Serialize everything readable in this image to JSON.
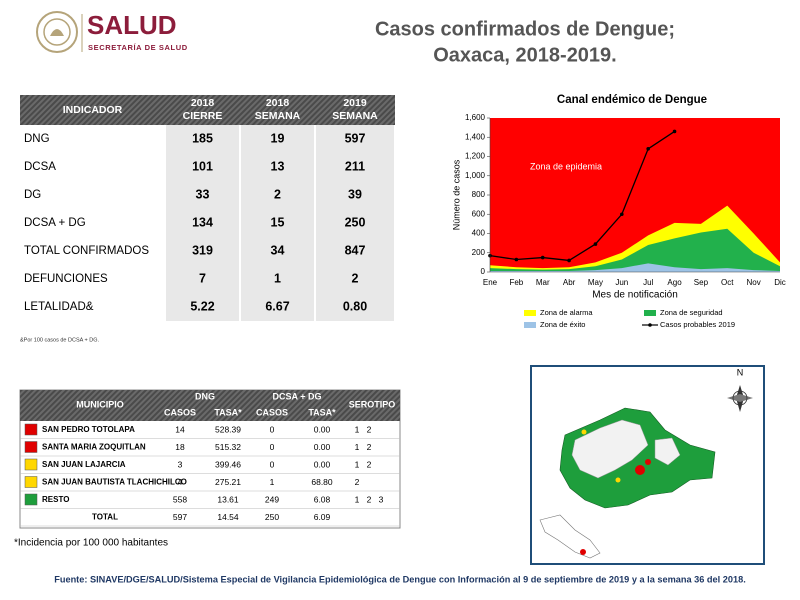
{
  "header": {
    "logo_text": "SALUD",
    "logo_subtext": "SECRETARÍA DE SALUD",
    "title_lines": [
      "Casos confirmados de Dengue;",
      "Oaxaca, 2018-2019."
    ]
  },
  "indicators": {
    "columns": [
      [
        "INDICADOR"
      ],
      [
        "2018",
        "CIERRE"
      ],
      [
        "2018",
        "SEMANA"
      ],
      [
        "2019",
        "SEMANA"
      ]
    ],
    "rows": [
      [
        "DNG",
        "185",
        "19",
        "597"
      ],
      [
        "DCSA",
        "101",
        "13",
        "211"
      ],
      [
        "DG",
        "33",
        "2",
        "39"
      ],
      [
        "DCSA + DG",
        "134",
        "15",
        "250"
      ],
      [
        "TOTAL CONFIRMADOS",
        "319",
        "34",
        "847"
      ],
      [
        "DEFUNCIONES",
        "7",
        "1",
        "2"
      ],
      [
        "LETALIDAD&",
        "5.22",
        "6.67",
        "0.80"
      ]
    ],
    "note": "&Por 100 casos de DCSA + DG."
  },
  "chart_data": {
    "type": "area",
    "title": "Canal endémico de Dengue",
    "xlabel": "Mes de notificación",
    "ylabel": "Número de casos",
    "categories": [
      "Ene",
      "Feb",
      "Mar",
      "Abr",
      "May",
      "Jun",
      "Jul",
      "Ago",
      "Sep",
      "Oct",
      "Nov",
      "Dic"
    ],
    "background_color": "#ff0000",
    "annotation": "Zona de epidemia",
    "series": [
      {
        "name": "Zona de alarma",
        "kind": "area",
        "color": "#ffff00",
        "values": [
          70,
          50,
          40,
          50,
          100,
          200,
          380,
          510,
          500,
          690,
          400,
          100
        ]
      },
      {
        "name": "Zona de seguridad",
        "kind": "area",
        "color": "#22b14c",
        "values": [
          40,
          30,
          25,
          30,
          60,
          130,
          280,
          350,
          410,
          450,
          200,
          60
        ]
      },
      {
        "name": "Zona de éxito",
        "kind": "area",
        "color": "#9dc3e6",
        "values": [
          10,
          10,
          10,
          10,
          20,
          40,
          90,
          50,
          30,
          40,
          20,
          10
        ]
      },
      {
        "name": "Casos probables 2019",
        "kind": "line",
        "color": "#000000",
        "values": [
          170,
          130,
          150,
          120,
          290,
          600,
          1280,
          1460,
          null,
          null,
          null,
          null
        ]
      }
    ],
    "ylim": [
      0,
      1600
    ],
    "yticks": [
      0,
      200,
      400,
      600,
      800,
      {
        "value": 1000,
        "label": "1,000"
      },
      {
        "value": 1200,
        "label": "1,200"
      },
      {
        "value": 1400,
        "label": "1,400"
      },
      {
        "value": 1600,
        "label": "1,600"
      }
    ]
  },
  "municipios": {
    "header": {
      "municipio": "MUNICIPIO",
      "dng": "DNG",
      "dcsa": "DCSA + DG",
      "casos": "CASOS",
      "tasa": "TASA*",
      "serotipo": "SEROTIPO"
    },
    "rows": [
      {
        "color": "#e00000",
        "name": "SAN PEDRO TOTOLAPA",
        "cells": [
          "14",
          "528.39",
          "0",
          "0.00"
        ],
        "serotipos": [
          "1",
          "2"
        ]
      },
      {
        "color": "#e00000",
        "name": "SANTA MARIA ZOQUITLAN",
        "cells": [
          "18",
          "515.32",
          "0",
          "0.00"
        ],
        "serotipos": [
          "1",
          "2"
        ]
      },
      {
        "color": "#ffd700",
        "name": "SAN JUAN LAJARCIA",
        "cells": [
          "3",
          "399.46",
          "0",
          "0.00"
        ],
        "serotipos": [
          "1",
          "2"
        ]
      },
      {
        "color": "#ffd700",
        "name": "SAN JUAN BAUTISTA TLACHICHILCO",
        "cells": [
          "4",
          "275.21",
          "1",
          "68.80"
        ],
        "serotipos": [
          "2"
        ]
      },
      {
        "color": "#1e9e3c",
        "name": "RESTO",
        "cells": [
          "558",
          "13.61",
          "249",
          "6.08"
        ],
        "serotipos": [
          "1",
          "2",
          "3"
        ]
      }
    ],
    "total": {
      "name": "TOTAL",
      "cells": [
        "597",
        "14.54",
        "250",
        "6.09"
      ]
    },
    "note": "*Incidencia por 100 000 habitantes"
  },
  "map": {
    "compass": "N"
  },
  "source": "Fuente: SINAVE/DGE/SALUD/Sistema Especial de Vigilancia Epidemiológica de Dengue con Información al 9 de septiembre de 2019 y a la semana 36 del 2018."
}
